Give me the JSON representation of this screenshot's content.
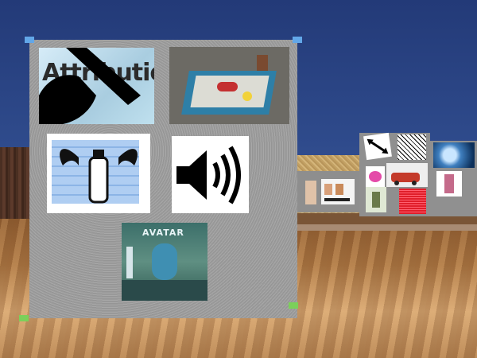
{
  "scene": {
    "description_label": "3D virtual gallery",
    "colors": {
      "sky": "#2f4b8c",
      "panel": "#a0a0a0",
      "floor": "#b07a45"
    }
  },
  "main_panel": {
    "image_attribution": {
      "text": "Attribution"
    },
    "image_avatar": {
      "title": "AVATAR"
    },
    "image_sound": {
      "icon": "speaker-icon"
    }
  },
  "side_panel": {
    "images": [
      "arrow-image",
      "noise-image",
      "logo-image",
      "car-image",
      "figure-image",
      "red-image"
    ]
  },
  "side_panel_2": {
    "images": [
      "blue-image",
      "figure-image"
    ]
  },
  "small_panel": {
    "images": [
      "people-image",
      "chart-image"
    ]
  }
}
